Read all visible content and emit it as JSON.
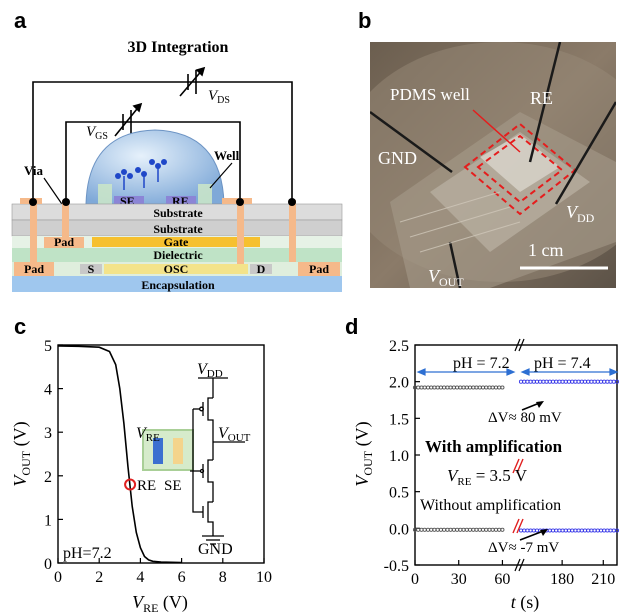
{
  "panel_a": {
    "letter": "a",
    "title": "3D Integration",
    "labels": {
      "vds": "V",
      "vds_sub": "DS",
      "vgs": "V",
      "vgs_sub": "GS",
      "via": "Via",
      "well": "Well",
      "se": "SE",
      "re": "RE",
      "substrate_top": "Substrate",
      "substrate_bottom": "Substrate",
      "pad_left": "Pad",
      "gate": "Gate",
      "dielectric": "Dielectric",
      "pad_bottom_left": "Pad",
      "s": "S",
      "osc": "OSC",
      "d": "D",
      "pad_bottom_right": "Pad",
      "encapsulation": "Encapsulation"
    },
    "colors": {
      "substrate": "#d8d8d8",
      "pad": "#f5b98a",
      "gate": "#f6c02f",
      "dielectric": "#bfe3c6",
      "osc": "#f3e38a",
      "encapsulation": "#9fc7ee",
      "dome": "#9dc3ea",
      "se": "#6a5acd",
      "re": "#6a5acd"
    }
  },
  "panel_b": {
    "letter": "b",
    "labels": {
      "pdms": "PDMS well",
      "re": "RE",
      "gnd": "GND",
      "vdd": "V",
      "vdd_sub": "DD",
      "vout": "V",
      "vout_sub": "OUT",
      "scale": "1 cm"
    }
  },
  "panel_c": {
    "letter": "c",
    "inset": {
      "vdd": "V",
      "vdd_sub": "DD",
      "vre": "V",
      "vre_sub": "RE",
      "vout": "V",
      "vout_sub": "OUT",
      "re": "RE",
      "se": "SE",
      "gnd": "GND"
    },
    "annotation": "pH=7.2"
  },
  "panel_d": {
    "letter": "d",
    "annotations": {
      "ph1": "pH = 7.2",
      "ph2": "pH = 7.4",
      "dv1": "ΔV≈ 80  mV",
      "with": "With amplification",
      "vre": "V",
      "vre_sub": "RE",
      "vre_val": " = 3.5 V",
      "without": "Without amplification",
      "dv2": "ΔV≈ -7  mV"
    }
  },
  "chart_data": [
    {
      "type": "line",
      "panel": "c",
      "xlabel": "V",
      "xlabel_sub": "RE",
      "xlabel_unit": " (V)",
      "ylabel": "V",
      "ylabel_sub": "OUT",
      "ylabel_unit": " (V)",
      "xlim": [
        0,
        10
      ],
      "ylim": [
        0,
        5
      ],
      "xticks": [
        "0",
        "2",
        "4",
        "6",
        "8",
        "10"
      ],
      "yticks": [
        "0",
        "1",
        "2",
        "3",
        "4",
        "5"
      ],
      "series": [
        {
          "x": [
            0,
            1,
            2,
            2.5,
            2.8,
            3.0,
            3.2,
            3.4,
            3.6,
            3.8,
            4.0,
            4.2,
            4.4,
            4.6,
            5.0,
            6.0
          ],
          "y": [
            4.98,
            4.97,
            4.95,
            4.85,
            4.55,
            4.0,
            3.2,
            2.2,
            1.3,
            0.7,
            0.35,
            0.15,
            0.07,
            0.04,
            0.02,
            0.01
          ]
        }
      ],
      "marker": {
        "x": 3.5,
        "y": 1.8,
        "color": "#e02020"
      },
      "grid": false
    },
    {
      "type": "scatter",
      "panel": "d",
      "xlabel": "t",
      "xlabel_unit": " (s)",
      "ylabel": "V",
      "ylabel_sub": "OUT",
      "ylabel_unit": " (V)",
      "ylim": [
        -0.5,
        2.5
      ],
      "xticks": [
        "0",
        "30",
        "60",
        "180",
        "210"
      ],
      "yticks": [
        "-0.5",
        "0.0",
        "0.5",
        "1.0",
        "1.5",
        "2.0",
        "2.5"
      ],
      "axis_break": "//",
      "series": [
        {
          "segment": "0-60 s",
          "x": [
            0,
            60
          ],
          "y": 1.92,
          "color": "#555555"
        },
        {
          "segment": "150-220 s",
          "x": [
            150,
            220
          ],
          "y": 2.0,
          "color": "#3a3ae8"
        },
        {
          "segment": "0-60 s",
          "x": [
            0,
            60
          ],
          "y": -0.02,
          "color": "#555555"
        },
        {
          "segment": "150-220 s",
          "x": [
            150,
            220
          ],
          "y": -0.03,
          "color": "#3a3ae8"
        }
      ],
      "grid": false
    }
  ]
}
